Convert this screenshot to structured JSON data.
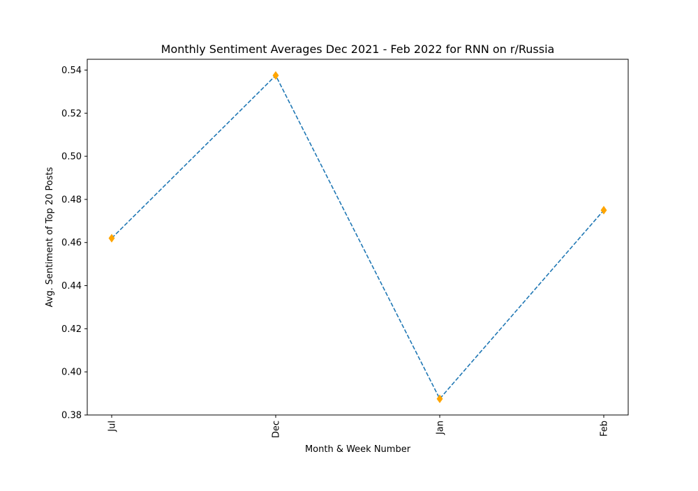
{
  "chart_data": {
    "type": "line",
    "title": "Monthly Sentiment Averages Dec 2021 - Feb 2022 for RNN on r/Russia",
    "xlabel": "Month & Week Number",
    "ylabel": "Avg. Sentiment of Top 20 Posts",
    "categories": [
      "Jul",
      "Dec",
      "Jan",
      "Feb"
    ],
    "series": [
      {
        "values": [
          0.462,
          0.5375,
          0.3875,
          0.475
        ],
        "line_color": "#1f77b4",
        "line_style": "dashed",
        "marker": "diamond",
        "marker_color": "#ffa500"
      }
    ],
    "ylim": [
      0.38,
      0.545
    ],
    "yticks": [
      0.38,
      0.4,
      0.42,
      0.44,
      0.46,
      0.48,
      0.5,
      0.52,
      0.54
    ],
    "ytick_labels": [
      "0.38",
      "0.40",
      "0.42",
      "0.44",
      "0.46",
      "0.48",
      "0.50",
      "0.52",
      "0.54"
    ],
    "x_tick_rotation": "vertical",
    "grid": false,
    "legend": false
  }
}
